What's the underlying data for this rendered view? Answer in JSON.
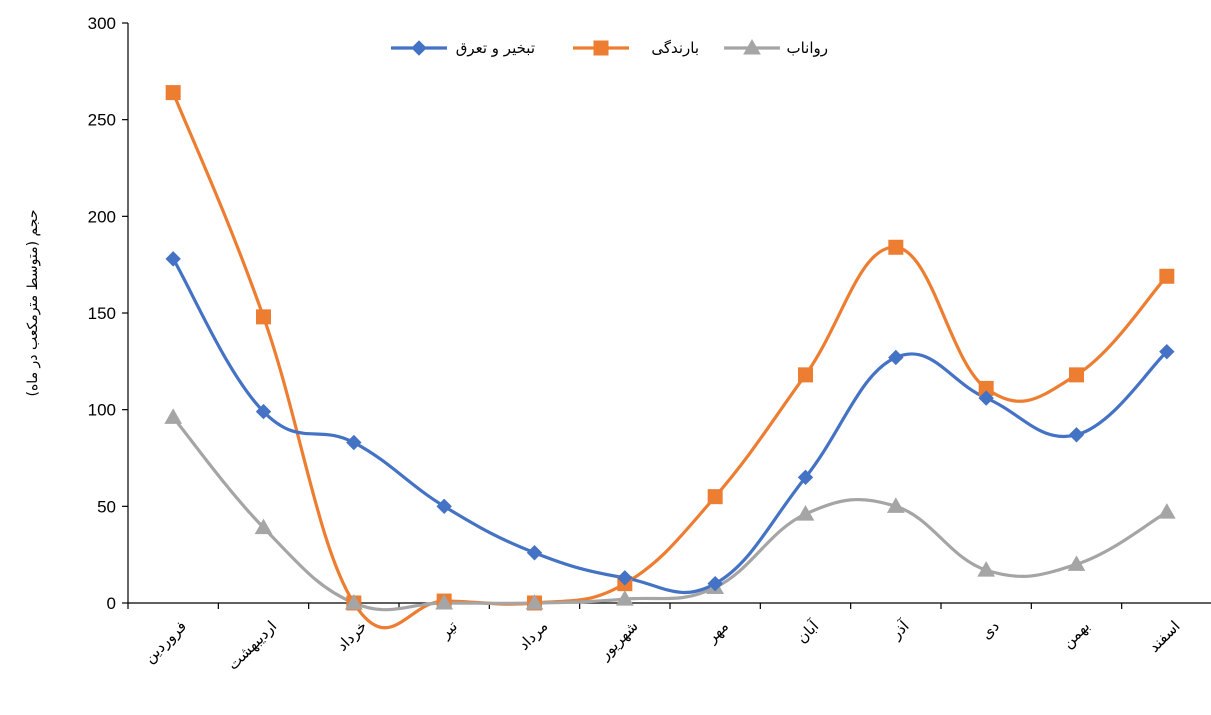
{
  "chart_data": {
    "type": "line",
    "smooth": true,
    "categories": [
      "فروردین",
      "اردیبهشت",
      "خرداد",
      "تیر",
      "مرداد",
      "شهریور",
      "مهر",
      "آبان",
      "آذر",
      "دی",
      "بهمن",
      "اسفند"
    ],
    "series": [
      {
        "name": "تبخیر و تعرق",
        "color": "#4472C4",
        "marker": "diamond",
        "values": [
          178,
          99,
          83,
          50,
          26,
          13,
          10,
          65,
          127,
          106,
          87,
          130
        ]
      },
      {
        "name": "بارندگی",
        "color": "#ED7D31",
        "marker": "square",
        "values": [
          264,
          148,
          0,
          1,
          0,
          10,
          55,
          118,
          184,
          111,
          118,
          169
        ]
      },
      {
        "name": "رواناب",
        "color": "#A5A5A5",
        "marker": "triangle",
        "values": [
          96,
          39,
          0,
          0,
          0,
          2,
          8,
          46,
          50,
          17,
          20,
          47
        ]
      }
    ],
    "yticks": [
      0,
      50,
      100,
      150,
      200,
      250,
      300
    ],
    "ylim": [
      0,
      300
    ],
    "ylabel": "حجم (متوسط مترمکعب در ماه)",
    "xlabel": "",
    "title": "",
    "grid": false,
    "legend": "top-center"
  }
}
